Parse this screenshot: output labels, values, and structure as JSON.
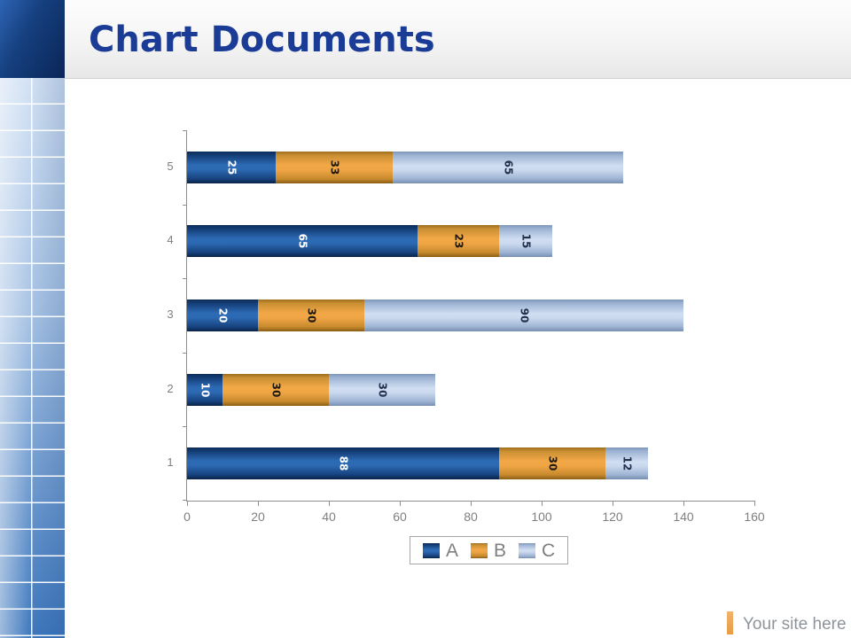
{
  "header": {
    "title": "Chart Documents"
  },
  "footer": {
    "site_label": "Your site here",
    "accent_color": "#EFA95E"
  },
  "chart_data": {
    "type": "bar",
    "orientation": "horizontal",
    "stacked": true,
    "title": "",
    "xlabel": "",
    "ylabel": "",
    "categories": [
      "1",
      "2",
      "3",
      "4",
      "5"
    ],
    "series": [
      {
        "name": "A",
        "color": "#2D6AB4",
        "label_color": "#ffffff",
        "values": [
          88,
          10,
          20,
          65,
          25
        ]
      },
      {
        "name": "B",
        "color": "#F2A847",
        "label_color": "#1e1a10",
        "values": [
          30,
          30,
          30,
          23,
          33
        ]
      },
      {
        "name": "C",
        "color": "#C9D8EE",
        "label_color": "#22304d",
        "values": [
          12,
          30,
          90,
          15,
          65
        ]
      }
    ],
    "xlim": [
      0,
      160
    ],
    "x_ticks": [
      0,
      20,
      40,
      60,
      80,
      100,
      120,
      140,
      160
    ],
    "grid": false,
    "legend_position": "bottom",
    "value_labels_rotated_deg": 90
  }
}
